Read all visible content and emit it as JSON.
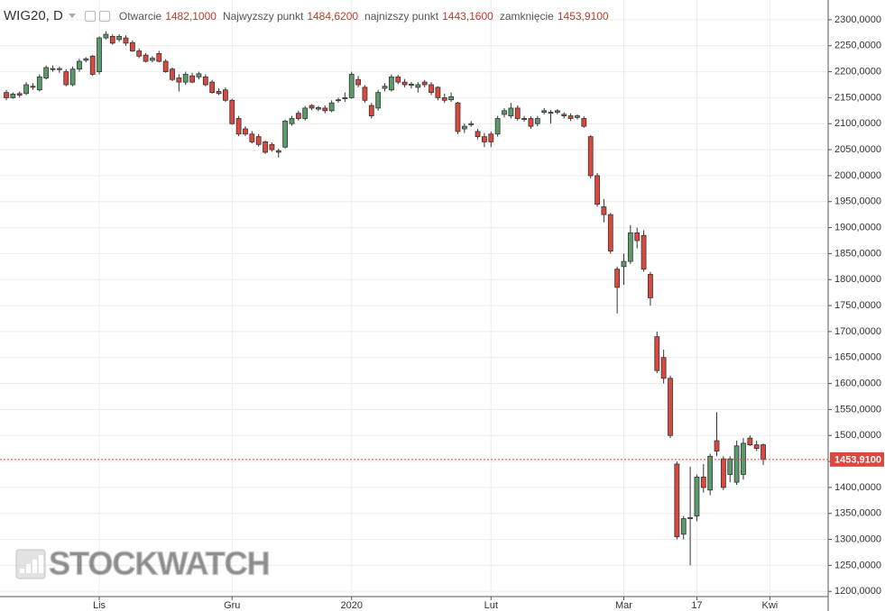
{
  "chart_data": {
    "type": "candlestick",
    "title": "WIG20, D",
    "legend": [
      {
        "label": "Otwarcie",
        "value": "1482,1000"
      },
      {
        "label": "Najwyzszy punkt",
        "value": "1484,6200"
      },
      {
        "label": "najnizszy punkt",
        "value": "1443,1600"
      },
      {
        "label": "zamknięcie",
        "value": "1453,9100"
      }
    ],
    "watermark": "STOCKWATCH",
    "up_color": "#5a9a6b",
    "down_color": "#d9493f",
    "border_color": "#333333",
    "grid": true,
    "ylim": [
      1190,
      2338
    ],
    "yticks": [
      {
        "value": 1200,
        "label": "1200,0000"
      },
      {
        "value": 1250,
        "label": "1250,0000"
      },
      {
        "value": 1300,
        "label": "1300,0000"
      },
      {
        "value": 1350,
        "label": "1350,0000"
      },
      {
        "value": 1400,
        "label": "1400,0000"
      },
      {
        "value": 1450,
        "label": "1450,0000"
      },
      {
        "value": 1500,
        "label": "1500,0000"
      },
      {
        "value": 1550,
        "label": "1550,0000"
      },
      {
        "value": 1600,
        "label": "1600,0000"
      },
      {
        "value": 1650,
        "label": "1650,0000"
      },
      {
        "value": 1700,
        "label": "1700,0000"
      },
      {
        "value": 1750,
        "label": "1750,0000"
      },
      {
        "value": 1800,
        "label": "1800,0000"
      },
      {
        "value": 1850,
        "label": "1850,0000"
      },
      {
        "value": 1900,
        "label": "1900,0000"
      },
      {
        "value": 1950,
        "label": "1950,0000"
      },
      {
        "value": 2000,
        "label": "2000,0000"
      },
      {
        "value": 2050,
        "label": "2050,0000"
      },
      {
        "value": 2100,
        "label": "2100,0000"
      },
      {
        "value": 2150,
        "label": "2150,0000"
      },
      {
        "value": 2200,
        "label": "2200,0000"
      },
      {
        "value": 2250,
        "label": "2250,0000"
      },
      {
        "value": 2300,
        "label": "2300,0000"
      }
    ],
    "last_price": {
      "value": 1453.91,
      "label": "1453,9100"
    },
    "categories": [
      null,
      null,
      null,
      null,
      null,
      null,
      null,
      null,
      null,
      null,
      null,
      null,
      null,
      null,
      "Lis",
      null,
      null,
      null,
      null,
      null,
      null,
      null,
      null,
      null,
      null,
      null,
      null,
      null,
      null,
      null,
      null,
      null,
      null,
      null,
      "Gru",
      null,
      null,
      null,
      null,
      null,
      null,
      null,
      null,
      null,
      null,
      null,
      null,
      null,
      null,
      null,
      null,
      null,
      "2020",
      null,
      null,
      null,
      null,
      null,
      null,
      null,
      null,
      null,
      null,
      null,
      null,
      null,
      null,
      null,
      null,
      null,
      null,
      null,
      null,
      "Lut",
      null,
      null,
      null,
      null,
      null,
      null,
      null,
      null,
      null,
      null,
      null,
      null,
      null,
      null,
      null,
      null,
      null,
      null,
      null,
      "Mar",
      null,
      null,
      null,
      null,
      null,
      null,
      null,
      null,
      null,
      null,
      "17",
      null,
      null,
      null,
      null,
      null,
      null,
      null,
      null,
      null,
      null,
      "Kwi"
    ],
    "series": {
      "open": [
        2160,
        2150,
        2158,
        2158,
        2172,
        2165,
        2188,
        2206,
        2204,
        2200,
        2175,
        2205,
        2222,
        2230,
        2200,
        2265,
        2268,
        2262,
        2265,
        2256,
        2240,
        2232,
        2222,
        2235,
        2220,
        2205,
        2188,
        2180,
        2192,
        2190,
        2190,
        2180,
        2162,
        2165,
        2145,
        2110,
        2090,
        2080,
        2075,
        2065,
        2060,
        2045,
        2055,
        2100,
        2120,
        2110,
        2135,
        2128,
        2130,
        2125,
        2145,
        2148,
        2150,
        2185,
        2170,
        2135,
        2130,
        2168,
        2165,
        2190,
        2180,
        2174,
        2170,
        2180,
        2175,
        2170,
        2150,
        2146,
        2140,
        2090,
        2098,
        2085,
        2075,
        2080,
        2080,
        2118,
        2115,
        2130,
        2108,
        2110,
        2100,
        2122,
        2122,
        2122,
        2118,
        2115,
        2112,
        2110,
        2075,
        2000,
        1940,
        1925,
        1820,
        1825,
        1835,
        1890,
        1885,
        1810,
        1690,
        1650,
        1610,
        1445,
        1310,
        1340,
        1345,
        1420,
        1395,
        1490,
        1455,
        1425,
        1410,
        1425,
        1495,
        1482,
        1482.1,
        null
      ],
      "high": [
        2165,
        2160,
        2162,
        2180,
        2178,
        2195,
        2212,
        2212,
        2210,
        2205,
        2210,
        2225,
        2228,
        2232,
        2268,
        2278,
        2272,
        2272,
        2270,
        2260,
        2245,
        2236,
        2230,
        2240,
        2224,
        2208,
        2195,
        2200,
        2198,
        2200,
        2195,
        2184,
        2168,
        2170,
        2148,
        2115,
        2095,
        2086,
        2080,
        2068,
        2064,
        2052,
        2108,
        2115,
        2125,
        2134,
        2138,
        2134,
        2135,
        2145,
        2150,
        2160,
        2200,
        2192,
        2174,
        2140,
        2165,
        2178,
        2195,
        2194,
        2186,
        2180,
        2180,
        2184,
        2180,
        2172,
        2158,
        2160,
        2142,
        2100,
        2105,
        2090,
        2082,
        2085,
        2115,
        2130,
        2140,
        2135,
        2115,
        2114,
        2115,
        2130,
        2126,
        2128,
        2122,
        2120,
        2118,
        2114,
        2078,
        2005,
        1955,
        1928,
        1825,
        1850,
        1905,
        1900,
        1895,
        1815,
        1700,
        1665,
        1615,
        1450,
        1345,
        1440,
        1425,
        1445,
        1465,
        1545,
        1460,
        1460,
        1490,
        1495,
        1500,
        1490,
        1484.62,
        null
      ],
      "low": [
        2145,
        2148,
        2150,
        2155,
        2165,
        2162,
        2185,
        2200,
        2198,
        2172,
        2172,
        2200,
        2218,
        2192,
        2195,
        2262,
        2252,
        2258,
        2250,
        2238,
        2226,
        2218,
        2218,
        2218,
        2198,
        2182,
        2162,
        2175,
        2178,
        2185,
        2172,
        2158,
        2155,
        2142,
        2098,
        2076,
        2076,
        2062,
        2056,
        2042,
        2046,
        2035,
        2052,
        2096,
        2106,
        2106,
        2126,
        2124,
        2120,
        2122,
        2140,
        2142,
        2148,
        2170,
        2140,
        2110,
        2125,
        2162,
        2162,
        2176,
        2170,
        2168,
        2160,
        2170,
        2155,
        2145,
        2140,
        2142,
        2080,
        2082,
        2094,
        2070,
        2055,
        2055,
        2075,
        2112,
        2110,
        2106,
        2104,
        2090,
        2095,
        2118,
        2100,
        2118,
        2110,
        2105,
        2108,
        2092,
        1995,
        1940,
        1910,
        1850,
        1735,
        1790,
        1830,
        1860,
        1815,
        1750,
        1620,
        1600,
        1495,
        1300,
        1300,
        1250,
        1335,
        1390,
        1385,
        1460,
        1395,
        1410,
        1405,
        1415,
        1480,
        1470,
        1443.16,
        null
      ],
      "close": [
        2150,
        2157,
        2155,
        2175,
        2170,
        2190,
        2208,
        2204,
        2206,
        2175,
        2205,
        2220,
        2225,
        2195,
        2265,
        2272,
        2255,
        2268,
        2255,
        2240,
        2230,
        2220,
        2226,
        2220,
        2200,
        2185,
        2180,
        2195,
        2180,
        2196,
        2175,
        2160,
        2158,
        2145,
        2100,
        2080,
        2080,
        2065,
        2060,
        2045,
        2050,
        2048,
        2105,
        2110,
        2110,
        2130,
        2130,
        2131,
        2125,
        2140,
        2146,
        2150,
        2195,
        2175,
        2145,
        2115,
        2160,
        2172,
        2190,
        2180,
        2175,
        2176,
        2175,
        2175,
        2160,
        2150,
        2145,
        2152,
        2085,
        2095,
        2100,
        2075,
        2065,
        2065,
        2110,
        2125,
        2130,
        2110,
        2110,
        2095,
        2110,
        2125,
        2120,
        2125,
        2115,
        2110,
        2115,
        2095,
        2000,
        1945,
        1925,
        1855,
        1785,
        1835,
        1890,
        1875,
        1820,
        1765,
        1625,
        1610,
        1500,
        1305,
        1340,
        1342,
        1420,
        1400,
        1460,
        1470,
        1400,
        1455,
        1480,
        1485,
        1482,
        1475,
        1453.91,
        null
      ]
    }
  }
}
